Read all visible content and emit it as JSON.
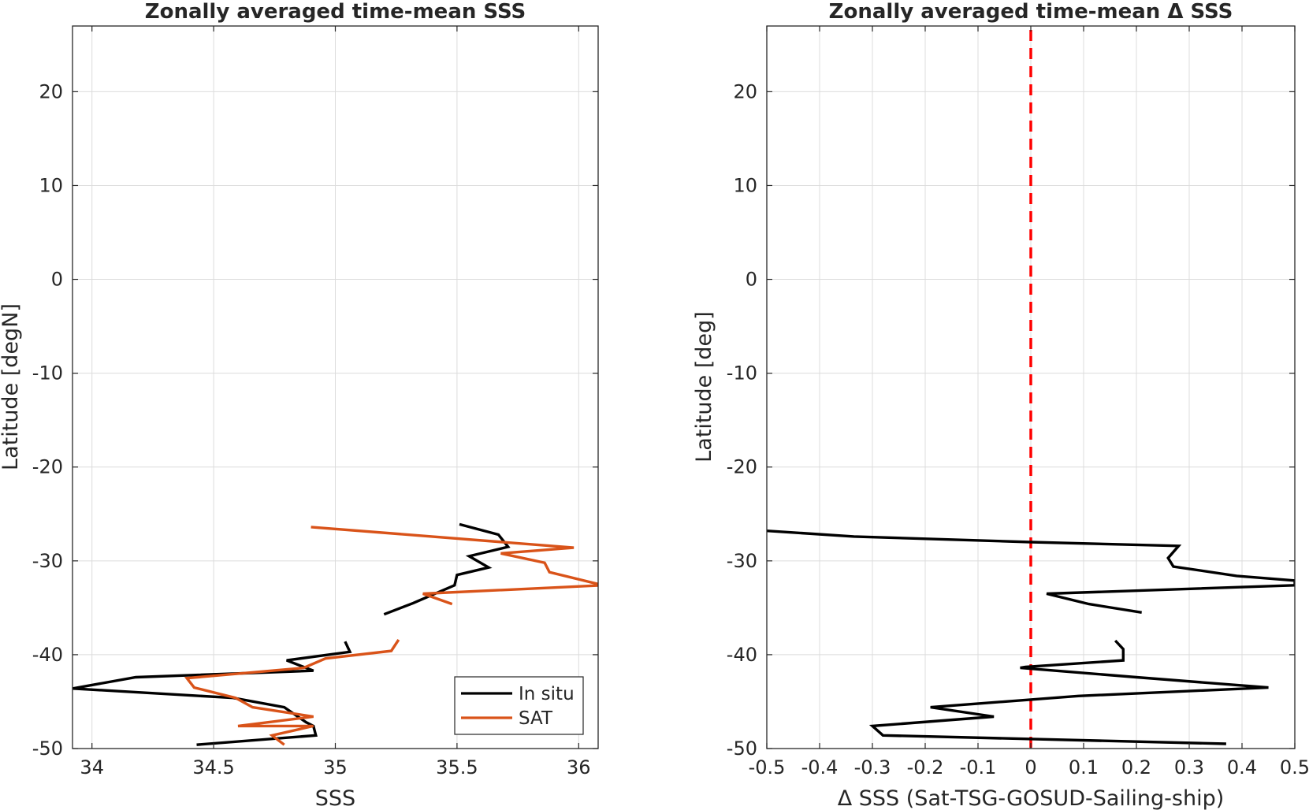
{
  "chart_data": [
    {
      "type": "line",
      "title": "Zonally averaged time-mean SSS",
      "xlabel": "SSS",
      "ylabel": "Latitude [degN]",
      "xlim": [
        33.92,
        36.08
      ],
      "ylim": [
        -50,
        27
      ],
      "xticks": [
        34,
        34.5,
        35,
        35.5,
        36
      ],
      "xtick_labels": [
        "34",
        "34.5",
        "35",
        "35.5",
        "36"
      ],
      "yticks": [
        -50,
        -40,
        -30,
        -20,
        -10,
        0,
        10,
        20
      ],
      "ytick_labels": [
        "-50",
        "-40",
        "-30",
        "-20",
        "-10",
        "0",
        "10",
        "20"
      ],
      "grid": true,
      "legend": {
        "position": "bottom-right",
        "entries": [
          "In situ",
          "SAT"
        ]
      },
      "series": [
        {
          "name": "In situ",
          "color": "#000000",
          "segments": [
            [
              [
                35.51,
                -26.1
              ],
              [
                35.67,
                -27.2
              ],
              [
                35.71,
                -28.5
              ],
              [
                35.55,
                -29.5
              ],
              [
                35.63,
                -30.7
              ],
              [
                35.5,
                -31.5
              ],
              [
                35.49,
                -32.6
              ],
              [
                35.32,
                -34.5
              ],
              [
                35.2,
                -35.7
              ]
            ],
            [
              [
                35.04,
                -38.6
              ],
              [
                35.06,
                -39.7
              ],
              [
                34.8,
                -40.6
              ],
              [
                34.91,
                -41.7
              ],
              [
                34.18,
                -42.4
              ],
              [
                33.92,
                -43.6
              ],
              [
                34.58,
                -44.6
              ],
              [
                34.79,
                -45.6
              ],
              [
                34.88,
                -47.2
              ],
              [
                34.91,
                -47.6
              ],
              [
                34.92,
                -48.6
              ],
              [
                34.43,
                -49.6
              ]
            ]
          ]
        },
        {
          "name": "SAT",
          "color": "#D95319",
          "segments": [
            [
              [
                34.9,
                -26.4
              ],
              [
                35.98,
                -28.6
              ],
              [
                35.68,
                -29.2
              ],
              [
                35.86,
                -30.2
              ],
              [
                35.88,
                -31.2
              ],
              [
                36.1,
                -32.6
              ],
              [
                35.36,
                -33.5
              ],
              [
                35.48,
                -34.6
              ]
            ],
            [
              [
                35.26,
                -38.4
              ],
              [
                35.23,
                -39.6
              ],
              [
                34.96,
                -40.4
              ],
              [
                34.87,
                -41.4
              ],
              [
                34.39,
                -42.5
              ],
              [
                34.42,
                -43.5
              ],
              [
                34.59,
                -44.6
              ],
              [
                34.66,
                -45.6
              ],
              [
                34.91,
                -46.6
              ],
              [
                34.6,
                -47.6
              ],
              [
                34.91,
                -47.6
              ],
              [
                34.74,
                -48.6
              ],
              [
                34.79,
                -49.6
              ]
            ]
          ]
        }
      ]
    },
    {
      "type": "line",
      "title": "Zonally averaged time-mean Δ SSS",
      "xlabel": "Δ SSS (Sat-TSG-GOSUD-Sailing-ship)",
      "ylabel": "Latitude [deg]",
      "xlim": [
        -0.5,
        0.5
      ],
      "ylim": [
        -50,
        27
      ],
      "xticks": [
        -0.5,
        -0.4,
        -0.3,
        -0.2,
        -0.1,
        0,
        0.1,
        0.2,
        0.3,
        0.4,
        0.5
      ],
      "xtick_labels": [
        "-0.5",
        "-0.4",
        "-0.3",
        "-0.2",
        "-0.1",
        "0",
        "0.1",
        "0.2",
        "0.3",
        "0.4",
        "0.5"
      ],
      "yticks": [
        -50,
        -40,
        -30,
        -20,
        -10,
        0,
        10,
        20
      ],
      "ytick_labels": [
        "-50",
        "-40",
        "-30",
        "-20",
        "-10",
        "0",
        "10",
        "20"
      ],
      "grid": true,
      "reference_line": {
        "x": 0,
        "color": "#FF0000",
        "style": "dashed"
      },
      "series": [
        {
          "color": "#000000",
          "segments": [
            [
              [
                -0.5,
                -26.8
              ],
              [
                -0.335,
                -27.4
              ],
              [
                0.0,
                -28.0
              ],
              [
                0.28,
                -28.4
              ],
              [
                0.26,
                -29.7
              ],
              [
                0.27,
                -30.6
              ],
              [
                0.39,
                -31.6
              ],
              [
                0.5,
                -32.1
              ],
              [
                0.5,
                -32.6
              ],
              [
                0.03,
                -33.5
              ],
              [
                0.11,
                -34.6
              ],
              [
                0.21,
                -35.5
              ]
            ],
            [
              [
                0.16,
                -38.5
              ],
              [
                0.175,
                -39.4
              ],
              [
                0.175,
                -40.6
              ],
              [
                -0.01,
                -41.3
              ],
              [
                -0.02,
                -41.4
              ],
              [
                0.2,
                -42.4
              ],
              [
                0.45,
                -43.5
              ],
              [
                0.09,
                -44.4
              ],
              [
                -0.19,
                -45.6
              ],
              [
                -0.07,
                -46.6
              ],
              [
                -0.3,
                -47.6
              ],
              [
                -0.28,
                -48.6
              ],
              [
                0.37,
                -49.5
              ]
            ]
          ]
        }
      ]
    }
  ]
}
